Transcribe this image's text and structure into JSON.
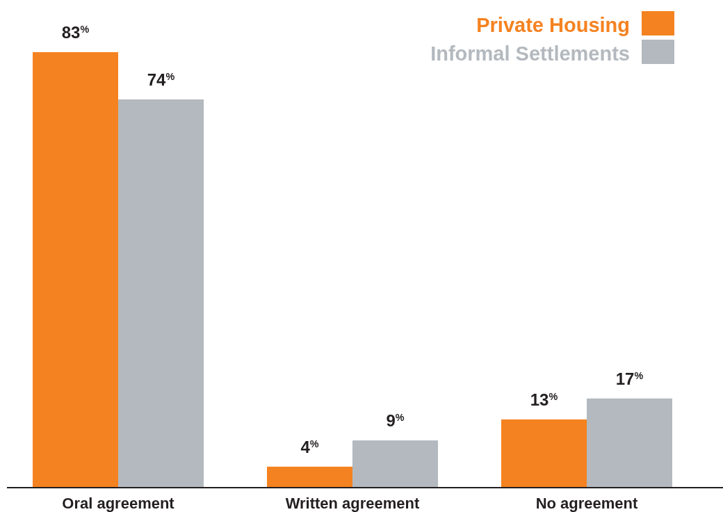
{
  "chart_data": {
    "type": "bar",
    "categories": [
      "Oral agreement",
      "Written agreement",
      "No agreement"
    ],
    "series": [
      {
        "name": "Private Housing",
        "color": "#f58220",
        "values": [
          83,
          4,
          13
        ],
        "value_labels": [
          "83$^{%}$",
          "4$^{%}$",
          "13$^{%}$"
        ]
      },
      {
        "name": "Informal Settlements",
        "color": "#b3b9be",
        "values": [
          74,
          9,
          17
        ],
        "value_labels": [
          "74$^{%}$",
          "9$^{%}$",
          "17$^{%}$"
        ]
      }
    ],
    "legend": "top right"
  }
}
